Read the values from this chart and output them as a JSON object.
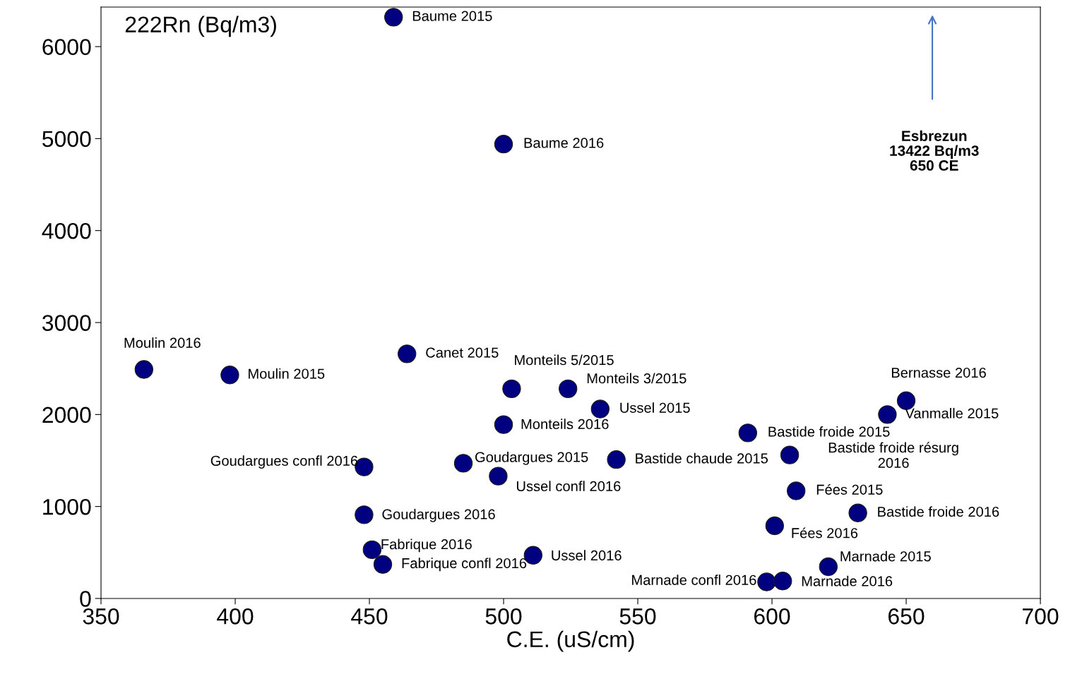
{
  "chart_data": {
    "type": "scatter",
    "xlabel": "C.E. (uS/cm)",
    "x": [
      459,
      500,
      366,
      398,
      464,
      503,
      524,
      536,
      500,
      448,
      485,
      542,
      498,
      448,
      451,
      455,
      511,
      591,
      606.6,
      609,
      601,
      632,
      621,
      598,
      604,
      650,
      643
    ],
    "series": [
      {
        "color": "#000080",
        "values": [
          6320,
          4940,
          2490,
          2430,
          2660,
          2280,
          2280,
          2060,
          1890,
          1430,
          1470,
          1510,
          1330,
          910,
          530,
          370,
          470,
          1800,
          1560,
          1170,
          790,
          930,
          345,
          180,
          190,
          2150,
          2000
        ]
      }
    ],
    "xlim": [
      350,
      700
    ],
    "ylim": [
      0,
      6430
    ],
    "xticks": [
      350,
      400,
      450,
      500,
      550,
      600,
      650,
      700
    ],
    "yticks": [
      0,
      1000,
      2000,
      3000,
      4000,
      5000,
      6000
    ],
    "grid": false,
    "legend": false,
    "marker": "circle",
    "annotations": [
      "222Rn (Bq/m3)",
      {
        "text": "Baume 2015",
        "x": 459,
        "y": 6320
      },
      {
        "text": "Baume 2016",
        "x": 500,
        "y": 4940
      },
      {
        "text": "Moulin 2016",
        "x": 366,
        "y": 2490
      },
      {
        "text": "Moulin 2015",
        "x": 398,
        "y": 2430
      },
      {
        "text": "Canet 2015",
        "x": 464,
        "y": 2660
      },
      {
        "text": "Monteils 5/2015",
        "x": 503,
        "y": 2280
      },
      {
        "text": "Monteils 3/2015",
        "x": 524,
        "y": 2280
      },
      {
        "text": "Ussel 2015",
        "x": 536,
        "y": 2060
      },
      {
        "text": "Monteils 2016",
        "x": 500,
        "y": 1890
      },
      {
        "text": "Goudargues confl 2016",
        "x": 448,
        "y": 1430
      },
      {
        "text": "Goudargues 2015",
        "x": 485,
        "y": 1470
      },
      {
        "text": "Bastide chaude 2015",
        "x": 542,
        "y": 1510
      },
      {
        "text": "Ussel confl 2016",
        "x": 498,
        "y": 1330
      },
      {
        "text": "Goudargues 2016",
        "x": 448,
        "y": 910
      },
      {
        "text": "Fabrique 2016",
        "x": 451,
        "y": 530
      },
      {
        "text": "Fabrique confl 2016",
        "x": 455,
        "y": 370
      },
      {
        "text": "Ussel 2016",
        "x": 511,
        "y": 470
      },
      {
        "text": "Bastide froide 2015",
        "x": 591,
        "y": 1800
      },
      {
        "text": "Bastide froide résurg\n2016",
        "x": 606.6,
        "y": 1560
      },
      {
        "text": "Fées 2015",
        "x": 609,
        "y": 1170
      },
      {
        "text": "Fées 2016",
        "x": 601,
        "y": 790
      },
      {
        "text": "Bastide froide 2016",
        "x": 632,
        "y": 930
      },
      {
        "text": "Marnade 2015",
        "x": 621,
        "y": 345
      },
      {
        "text": "Marnade confl 2016",
        "x": 598,
        "y": 180
      },
      {
        "text": "Marnade 2016",
        "x": 604,
        "y": 190
      },
      {
        "text": "Bernasse 2016",
        "x": 650,
        "y": 2150
      },
      {
        "text": "Vanmalle 2015",
        "x": 643,
        "y": 2000
      },
      "Esbrezun\n13422 Bq/m3\n650 CE"
    ]
  }
}
